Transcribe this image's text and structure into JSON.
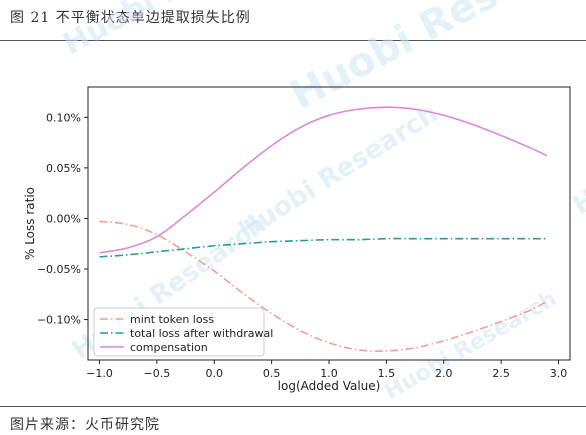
{
  "caption": "图 21 不平衡状态单边提取损失比例",
  "source": "图片来源：火币研究院",
  "watermark": "Huobi Research",
  "colors": {
    "mint": "#f4a090",
    "total": "#2a9a9a",
    "comp": "#dd88dd"
  },
  "chart_data": {
    "type": "line",
    "title": "",
    "xlabel": "log(Added Value)",
    "ylabel": "% Loss ratio",
    "xlim": [
      -1.1,
      3.1
    ],
    "ylim": [
      -0.0014,
      0.0013
    ],
    "x_ticks": [
      -1.0,
      -0.5,
      0.0,
      0.5,
      1.0,
      1.5,
      2.0,
      2.5,
      3.0
    ],
    "x_tick_labels": [
      "−1.0",
      "−0.5",
      "0.0",
      "0.5",
      "1.0",
      "1.5",
      "2.0",
      "2.5",
      "3.0"
    ],
    "y_ticks": [
      -0.001,
      -0.0005,
      0.0,
      0.0005,
      0.001
    ],
    "y_tick_labels": [
      "−0.10%",
      "−0.05%",
      "0.00%",
      "0.05%",
      "0.10%"
    ],
    "grid": false,
    "legend_position": "bottom-left",
    "x": [
      -1.0,
      -0.75,
      -0.5,
      -0.25,
      0.0,
      0.25,
      0.5,
      0.75,
      1.0,
      1.25,
      1.5,
      1.75,
      2.0,
      2.25,
      2.5,
      2.75,
      2.9
    ],
    "series": [
      {
        "name": "mint token loss",
        "style": "dashdot",
        "color": "#f4a090",
        "values": [
          -3e-05,
          -6e-05,
          -0.00016,
          -0.00033,
          -0.00052,
          -0.00074,
          -0.00094,
          -0.00111,
          -0.00123,
          -0.0013,
          -0.00131,
          -0.00128,
          -0.00121,
          -0.00112,
          -0.00102,
          -0.00091,
          -0.00082
        ]
      },
      {
        "name": "total loss after withdrawal",
        "style": "dashdot",
        "color": "#2a9a9a",
        "values": [
          -0.00038,
          -0.00036,
          -0.00033,
          -0.0003,
          -0.00027,
          -0.00025,
          -0.00023,
          -0.00022,
          -0.00021,
          -0.00021,
          -0.0002,
          -0.0002,
          -0.0002,
          -0.0002,
          -0.0002,
          -0.0002,
          -0.0002
        ]
      },
      {
        "name": "compensation",
        "style": "solid",
        "color": "#dd88dd",
        "values": [
          -0.00034,
          -0.00029,
          -0.00018,
          3e-05,
          0.00026,
          0.0005,
          0.00072,
          0.0009,
          0.00102,
          0.00108,
          0.0011,
          0.00108,
          0.00102,
          0.00093,
          0.00082,
          0.0007,
          0.00062
        ]
      }
    ]
  }
}
